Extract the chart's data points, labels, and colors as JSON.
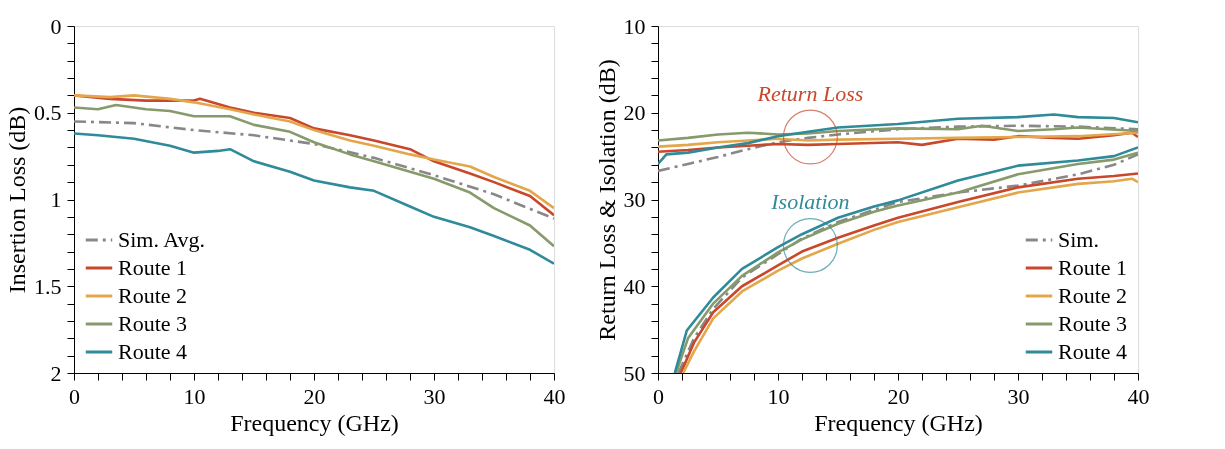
{
  "chart_data": [
    {
      "type": "line",
      "xlabel": "Frequency (GHz)",
      "ylabel": "Insertion Loss (dB)",
      "legend": "bottom left",
      "grid": false,
      "marker": "none",
      "xlim": [
        0,
        40
      ],
      "ylim": [
        2,
        0
      ],
      "xticks": [
        0,
        {
          "value": 2,
          "label": null
        },
        {
          "value": 4,
          "label": null
        },
        {
          "value": 6,
          "label": null
        },
        {
          "value": 8,
          "label": null
        },
        10,
        {
          "value": 12,
          "label": null
        },
        {
          "value": 14,
          "label": null
        },
        {
          "value": 16,
          "label": null
        },
        {
          "value": 18,
          "label": null
        },
        20,
        {
          "value": 22,
          "label": null
        },
        {
          "value": 24,
          "label": null
        },
        {
          "value": 26,
          "label": null
        },
        {
          "value": 28,
          "label": null
        },
        30,
        {
          "value": 32,
          "label": null
        },
        {
          "value": 34,
          "label": null
        },
        {
          "value": 36,
          "label": null
        },
        {
          "value": 38,
          "label": null
        },
        40
      ],
      "yticks": [
        0,
        {
          "value": 0.1,
          "label": null
        },
        {
          "value": 0.2,
          "label": null
        },
        {
          "value": 0.3,
          "label": null
        },
        {
          "value": 0.4,
          "label": null
        },
        0.5,
        {
          "value": 0.6,
          "label": null
        },
        {
          "value": 0.7,
          "label": null
        },
        {
          "value": 0.8,
          "label": null
        },
        {
          "value": 0.9,
          "label": null
        },
        1,
        {
          "value": 1.1,
          "label": null
        },
        {
          "value": 1.2,
          "label": null
        },
        {
          "value": 1.3,
          "label": null
        },
        {
          "value": 1.4,
          "label": null
        },
        1.5,
        {
          "value": 1.6,
          "label": null
        },
        {
          "value": 1.7,
          "label": null
        },
        {
          "value": 1.8,
          "label": null
        },
        {
          "value": 1.9,
          "label": null
        },
        2
      ],
      "series": [
        {
          "name": "Sim. Avg.",
          "color": "#888888",
          "line_style": "dashed",
          "x": [
            0,
            5,
            10,
            15,
            20,
            25,
            30,
            35,
            40
          ],
          "values": [
            0.55,
            0.56,
            0.6,
            0.63,
            0.68,
            0.76,
            0.86,
            0.97,
            1.11
          ]
        },
        {
          "name": "Route 1",
          "color": "#c9472b",
          "line_style": "solid",
          "x": [
            0,
            3,
            6,
            8,
            10,
            10.5,
            13,
            15,
            18,
            20,
            23,
            25,
            28,
            30,
            33,
            35,
            38,
            40
          ],
          "values": [
            0.4,
            0.42,
            0.43,
            0.43,
            0.43,
            0.42,
            0.47,
            0.5,
            0.53,
            0.59,
            0.63,
            0.66,
            0.71,
            0.78,
            0.85,
            0.9,
            0.98,
            1.09
          ]
        },
        {
          "name": "Route 2",
          "color": "#e3a64a",
          "line_style": "solid",
          "x": [
            0,
            3,
            5,
            8,
            10,
            13,
            15,
            18,
            20,
            23,
            25,
            28,
            30,
            33,
            35,
            38,
            40
          ],
          "values": [
            0.4,
            0.41,
            0.4,
            0.42,
            0.44,
            0.48,
            0.51,
            0.55,
            0.6,
            0.66,
            0.69,
            0.74,
            0.77,
            0.81,
            0.87,
            0.95,
            1.05
          ]
        },
        {
          "name": "Route 3",
          "color": "#869a6b",
          "line_style": "solid",
          "x": [
            0,
            2,
            3.5,
            6,
            8,
            10,
            13,
            15,
            18,
            20,
            23,
            25,
            28,
            30,
            33,
            35,
            38,
            40
          ],
          "values": [
            0.47,
            0.48,
            0.455,
            0.48,
            0.49,
            0.52,
            0.52,
            0.57,
            0.61,
            0.67,
            0.74,
            0.78,
            0.84,
            0.88,
            0.96,
            1.05,
            1.15,
            1.27
          ]
        },
        {
          "name": "Route 4",
          "color": "#2f8a9a",
          "line_style": "solid",
          "x": [
            0,
            2,
            5,
            8,
            10,
            12,
            13,
            15,
            18,
            20,
            23,
            25,
            28,
            30,
            33,
            35,
            38,
            40
          ],
          "values": [
            0.62,
            0.63,
            0.65,
            0.69,
            0.73,
            0.72,
            0.71,
            0.78,
            0.84,
            0.89,
            0.93,
            0.95,
            1.04,
            1.1,
            1.16,
            1.21,
            1.29,
            1.37
          ]
        }
      ]
    },
    {
      "type": "line",
      "xlabel": "Frequency (GHz)",
      "ylabel": "Return Loss & Isolation (dB)",
      "legend": "bottom right",
      "grid": false,
      "marker": "none",
      "xlim": [
        0,
        40
      ],
      "ylim": [
        50,
        10
      ],
      "xticks": [
        0,
        {
          "value": 2,
          "label": null
        },
        {
          "value": 4,
          "label": null
        },
        {
          "value": 6,
          "label": null
        },
        {
          "value": 8,
          "label": null
        },
        10,
        {
          "value": 12,
          "label": null
        },
        {
          "value": 14,
          "label": null
        },
        {
          "value": 16,
          "label": null
        },
        {
          "value": 18,
          "label": null
        },
        20,
        {
          "value": 22,
          "label": null
        },
        {
          "value": 24,
          "label": null
        },
        {
          "value": 26,
          "label": null
        },
        {
          "value": 28,
          "label": null
        },
        30,
        {
          "value": 32,
          "label": null
        },
        {
          "value": 34,
          "label": null
        },
        {
          "value": 36,
          "label": null
        },
        {
          "value": 38,
          "label": null
        },
        40
      ],
      "yticks": [
        10,
        {
          "value": 12,
          "label": null
        },
        {
          "value": 14,
          "label": null
        },
        {
          "value": 16,
          "label": null
        },
        {
          "value": 18,
          "label": null
        },
        20,
        {
          "value": 22,
          "label": null
        },
        {
          "value": 24,
          "label": null
        },
        {
          "value": 26,
          "label": null
        },
        {
          "value": 28,
          "label": null
        },
        30,
        {
          "value": 32,
          "label": null
        },
        {
          "value": 34,
          "label": null
        },
        {
          "value": 36,
          "label": null
        },
        {
          "value": 38,
          "label": null
        },
        40,
        {
          "value": 42,
          "label": null
        },
        {
          "value": 44,
          "label": null
        },
        {
          "value": 46,
          "label": null
        },
        {
          "value": 48,
          "label": null
        },
        50
      ],
      "annotations": [
        {
          "text": "Return Loss",
          "x": 12.7,
          "y": 22.8
        },
        {
          "text": "Isolation",
          "x": 12.7,
          "y": 35.3
        }
      ],
      "series": [
        {
          "name": "Sim.",
          "color": "#888888",
          "line_style": "dashed",
          "x": [
            1.7,
            3,
            4.6,
            7,
            10,
            12,
            15,
            18,
            20,
            25,
            30,
            35,
            38,
            40
          ],
          "values": [
            50,
            46,
            42.6,
            39,
            36.3,
            34.5,
            32.6,
            31.2,
            30.3,
            29.2,
            28.4,
            27.1,
            26,
            24.8
          ]
        },
        {
          "name": "Route 1",
          "color": "#c9472b",
          "line_style": "solid",
          "x": [
            1.9,
            3,
            4.6,
            7,
            10,
            12,
            15,
            18,
            20,
            25,
            30,
            35,
            38,
            40
          ],
          "values": [
            50,
            46.5,
            43,
            40,
            37.6,
            36,
            34.4,
            33,
            32.1,
            30.3,
            28.6,
            27.6,
            27.3,
            27
          ]
        },
        {
          "name": "Route 2",
          "color": "#e3a64a",
          "line_style": "solid",
          "x": [
            2.1,
            3,
            4.6,
            7,
            10,
            12,
            15,
            18,
            20,
            25,
            30,
            35,
            38,
            39.5,
            40
          ],
          "values": [
            50,
            47.5,
            43.7,
            40.6,
            38.2,
            36.8,
            35.1,
            33.5,
            32.6,
            30.9,
            29.2,
            28.2,
            27.9,
            27.6,
            28
          ]
        },
        {
          "name": "Route 3",
          "color": "#869a6b",
          "line_style": "solid",
          "x": [
            1.5,
            2.5,
            4.6,
            7,
            10,
            12,
            15,
            18,
            20,
            25,
            30,
            35,
            38,
            40
          ],
          "values": [
            50,
            46,
            42,
            38.8,
            36.1,
            34.6,
            32.8,
            31.4,
            30.7,
            29.2,
            27.1,
            25.9,
            25.4,
            24.6
          ]
        },
        {
          "name": "Route 4",
          "color": "#2f8a9a",
          "line_style": "solid",
          "x": [
            1.4,
            2.4,
            4.6,
            7,
            10,
            12,
            15,
            18,
            20,
            25,
            30,
            35,
            38,
            40
          ],
          "values": [
            50,
            45.1,
            41.3,
            38,
            35.5,
            34,
            32.1,
            30.8,
            30.1,
            27.8,
            26.1,
            25.5,
            25,
            24
          ]
        },
        {
          "color": "#888888",
          "line_style": "dashed",
          "x": [
            0,
            2.5,
            5,
            7.5,
            10,
            12.5,
            15,
            20,
            25,
            30,
            35,
            40
          ],
          "values": [
            26.7,
            25.9,
            25.1,
            24.2,
            23.4,
            22.9,
            22.5,
            21.9,
            21.6,
            21.5,
            21.6,
            21.9
          ]
        },
        {
          "color": "#c9472b",
          "line_style": "solid",
          "x": [
            0,
            2.5,
            5,
            7.5,
            10,
            12.5,
            15,
            20,
            22,
            25,
            28,
            30,
            33,
            35,
            38,
            39.5,
            40
          ],
          "values": [
            24.5,
            24.3,
            24,
            23.8,
            23.6,
            23.7,
            23.6,
            23.4,
            23.7,
            23,
            23.1,
            22.7,
            22.9,
            23,
            22.6,
            22.3,
            22.8
          ]
        },
        {
          "color": "#e3a64a",
          "line_style": "solid",
          "x": [
            0,
            2.5,
            5,
            7.5,
            10,
            12.5,
            15,
            20,
            25,
            30,
            35,
            40
          ],
          "values": [
            23.9,
            23.7,
            23.4,
            23.2,
            23,
            23.2,
            23.1,
            23,
            22.9,
            22.8,
            22.7,
            22.3
          ]
        },
        {
          "color": "#869a6b",
          "line_style": "solid",
          "x": [
            0,
            2.5,
            5,
            7.5,
            10,
            12.5,
            15,
            20,
            25,
            27,
            30,
            33,
            35,
            40
          ],
          "values": [
            23.2,
            22.9,
            22.5,
            22.3,
            22.5,
            22.4,
            22.1,
            21.8,
            21.9,
            21.5,
            22.1,
            21.9,
            21.7,
            22.1
          ]
        },
        {
          "color": "#2f8a9a",
          "line_style": "solid",
          "x": [
            0,
            0.7,
            2.5,
            5,
            7.5,
            10,
            12.5,
            15,
            20,
            25,
            30,
            33,
            35,
            38,
            40
          ],
          "values": [
            25.9,
            24.8,
            24.6,
            24,
            23.5,
            22.7,
            22.2,
            21.7,
            21.3,
            20.7,
            20.5,
            20.2,
            20.5,
            20.6,
            21.1
          ]
        }
      ]
    }
  ]
}
